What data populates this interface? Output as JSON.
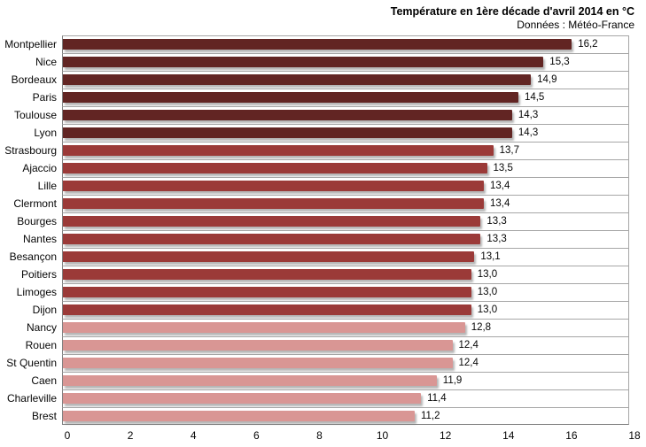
{
  "chart": {
    "title": "Température en 1ère décade d'avril 2014 en °C",
    "subtitle": "Données : Météo-France"
  },
  "chart_data": {
    "type": "bar",
    "orientation": "horizontal",
    "title": "Température en 1ère décade d'avril 2014 en °C",
    "subtitle": "Données : Météo-France",
    "categories": [
      "Montpellier",
      "Nice",
      "Bordeaux",
      "Paris",
      "Toulouse",
      "Lyon",
      "Strasbourg",
      "Ajaccio",
      "Lille",
      "Clermont",
      "Bourges",
      "Nantes",
      "Besançon",
      "Poitiers",
      "Limoges",
      "Dijon",
      "Nancy",
      "Rouen",
      "St Quentin",
      "Caen",
      "Charleville",
      "Brest"
    ],
    "values": [
      16.2,
      15.3,
      14.9,
      14.5,
      14.3,
      14.3,
      13.7,
      13.5,
      13.4,
      13.4,
      13.3,
      13.3,
      13.1,
      13.0,
      13.0,
      13.0,
      12.8,
      12.4,
      12.4,
      11.9,
      11.4,
      11.2
    ],
    "value_labels": [
      "16,2",
      "15,3",
      "14,9",
      "14,5",
      "14,3",
      "14,3",
      "13,7",
      "13,5",
      "13,4",
      "13,4",
      "13,3",
      "13,3",
      "13,1",
      "13,0",
      "13,0",
      "13,0",
      "12,8",
      "12,4",
      "12,4",
      "11,9",
      "11,4",
      "11,2"
    ],
    "color_groups": [
      "dark",
      "dark",
      "dark",
      "dark",
      "dark",
      "dark",
      "medium",
      "medium",
      "medium",
      "medium",
      "medium",
      "medium",
      "medium",
      "medium",
      "medium",
      "medium",
      "light",
      "light",
      "light",
      "light",
      "light",
      "light"
    ],
    "colors": {
      "dark": "#622523",
      "medium": "#9B3A38",
      "light": "#D99694"
    },
    "xlabel": "",
    "ylabel": "",
    "xlim": [
      0,
      18
    ],
    "xticks": [
      0,
      2,
      4,
      6,
      8,
      10,
      12,
      14,
      16,
      18
    ],
    "grid": "category-row-lines-horizontal",
    "legend": "none"
  }
}
